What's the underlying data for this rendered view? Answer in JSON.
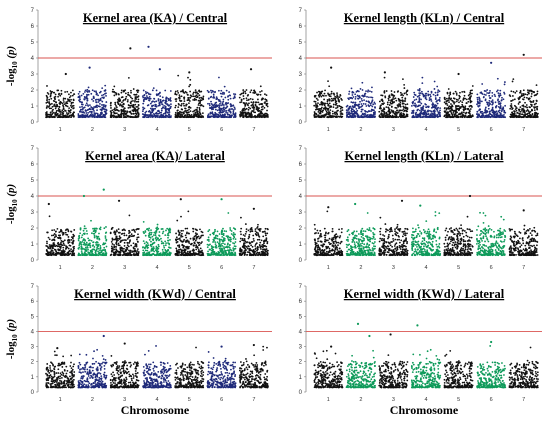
{
  "colors": {
    "dark": "#111111",
    "blue": "#1f2a7a",
    "green": "#0e9a5a",
    "threshold": "#d9534f"
  },
  "chart_data": [
    {
      "type": "scatter",
      "title": "Kernel area (KA) / Central",
      "ylabel_main": "-log",
      "ylabel_sub": "10",
      "ylabel_var": "(p)",
      "alt_color": "blue",
      "ylim": [
        0,
        7
      ],
      "yticks": [
        0,
        1,
        2,
        3,
        4,
        5,
        6,
        7
      ],
      "threshold": 4,
      "chromosomes": [
        "1",
        "2",
        "3",
        "4",
        "5",
        "6",
        "7"
      ],
      "peaks": [
        {
          "chr": 3,
          "pos": 0.7,
          "y": 4.6
        },
        {
          "chr": 4,
          "pos": 0.2,
          "y": 4.7
        },
        {
          "chr": 4,
          "pos": 0.6,
          "y": 3.3
        },
        {
          "chr": 2,
          "pos": 0.4,
          "y": 3.4
        },
        {
          "chr": 7,
          "pos": 0.4,
          "y": 3.3
        },
        {
          "chr": 1,
          "pos": 0.7,
          "y": 3.0
        },
        {
          "chr": 5,
          "pos": 0.5,
          "y": 3.1
        }
      ]
    },
    {
      "type": "scatter",
      "title": "Kernel length (KLn) / Central",
      "ylabel_main": "",
      "ylabel_sub": "",
      "ylabel_var": "",
      "alt_color": "blue",
      "ylim": [
        0,
        7
      ],
      "yticks": [
        0,
        1,
        2,
        3,
        4,
        5,
        6,
        7
      ],
      "threshold": 4,
      "chromosomes": [
        "1",
        "2",
        "3",
        "4",
        "5",
        "6",
        "7"
      ],
      "peaks": [
        {
          "chr": 7,
          "pos": 0.5,
          "y": 4.2
        },
        {
          "chr": 6,
          "pos": 0.5,
          "y": 3.7
        },
        {
          "chr": 1,
          "pos": 0.6,
          "y": 3.4
        },
        {
          "chr": 3,
          "pos": 0.2,
          "y": 3.1
        },
        {
          "chr": 5,
          "pos": 0.5,
          "y": 3.0
        }
      ]
    },
    {
      "type": "scatter",
      "title": "Kernel area (KA)/ Lateral",
      "ylabel_main": "-log",
      "ylabel_sub": "10",
      "ylabel_var": "(p)",
      "alt_color": "green",
      "ylim": [
        0,
        7
      ],
      "yticks": [
        0,
        1,
        2,
        3,
        4,
        5,
        6,
        7
      ],
      "threshold": 4,
      "chromosomes": [
        "1",
        "2",
        "3",
        "4",
        "5",
        "6",
        "7"
      ],
      "peaks": [
        {
          "chr": 2,
          "pos": 0.9,
          "y": 4.4
        },
        {
          "chr": 2,
          "pos": 0.2,
          "y": 4.0
        },
        {
          "chr": 5,
          "pos": 0.2,
          "y": 3.8
        },
        {
          "chr": 6,
          "pos": 0.5,
          "y": 3.8
        },
        {
          "chr": 3,
          "pos": 0.3,
          "y": 3.7
        },
        {
          "chr": 1,
          "pos": 0.1,
          "y": 3.5
        },
        {
          "chr": 7,
          "pos": 0.5,
          "y": 3.2
        }
      ]
    },
    {
      "type": "scatter",
      "title": "Kernel length (KLn) / Lateral",
      "ylabel_main": "",
      "ylabel_sub": "",
      "ylabel_var": "",
      "alt_color": "green",
      "ylim": [
        0,
        7
      ],
      "yticks": [
        0,
        1,
        2,
        3,
        4,
        5,
        6,
        7
      ],
      "threshold": 4,
      "chromosomes": [
        "1",
        "2",
        "3",
        "4",
        "5",
        "6",
        "7"
      ],
      "peaks": [
        {
          "chr": 5,
          "pos": 0.9,
          "y": 4.0
        },
        {
          "chr": 3,
          "pos": 0.8,
          "y": 3.7
        },
        {
          "chr": 2,
          "pos": 0.3,
          "y": 3.5
        },
        {
          "chr": 4,
          "pos": 0.3,
          "y": 3.4
        },
        {
          "chr": 1,
          "pos": 0.5,
          "y": 3.3
        },
        {
          "chr": 7,
          "pos": 0.5,
          "y": 3.1
        }
      ]
    },
    {
      "type": "scatter",
      "title": "Kernel width (KWd) / Central",
      "ylabel_main": "-log",
      "ylabel_sub": "10",
      "ylabel_var": "(p)",
      "alt_color": "blue",
      "ylim": [
        0,
        7
      ],
      "yticks": [
        0,
        1,
        2,
        3,
        4,
        5,
        6,
        7
      ],
      "threshold": 4,
      "xlabel": "Chromosome",
      "chromosomes": [
        "1",
        "2",
        "3",
        "4",
        "5",
        "6",
        "7"
      ],
      "peaks": [
        {
          "chr": 2,
          "pos": 0.9,
          "y": 3.7
        },
        {
          "chr": 3,
          "pos": 0.5,
          "y": 3.2
        },
        {
          "chr": 6,
          "pos": 0.5,
          "y": 3.0
        },
        {
          "chr": 7,
          "pos": 0.5,
          "y": 3.1
        },
        {
          "chr": 1,
          "pos": 0.4,
          "y": 2.9
        }
      ]
    },
    {
      "type": "scatter",
      "title": "Kernel width (KWd) / Lateral",
      "ylabel_main": "",
      "ylabel_sub": "",
      "ylabel_var": "",
      "alt_color": "green",
      "ylim": [
        0,
        7
      ],
      "yticks": [
        0,
        1,
        2,
        3,
        4,
        5,
        6,
        7
      ],
      "threshold": 4,
      "xlabel": "Chromosome",
      "chromosomes": [
        "1",
        "2",
        "3",
        "4",
        "5",
        "6",
        "7"
      ],
      "peaks": [
        {
          "chr": 2,
          "pos": 0.4,
          "y": 4.5
        },
        {
          "chr": 4,
          "pos": 0.2,
          "y": 4.4
        },
        {
          "chr": 3,
          "pos": 0.4,
          "y": 3.8
        },
        {
          "chr": 2,
          "pos": 0.8,
          "y": 3.7
        },
        {
          "chr": 6,
          "pos": 0.5,
          "y": 3.3
        },
        {
          "chr": 1,
          "pos": 0.6,
          "y": 3.0
        }
      ]
    }
  ]
}
